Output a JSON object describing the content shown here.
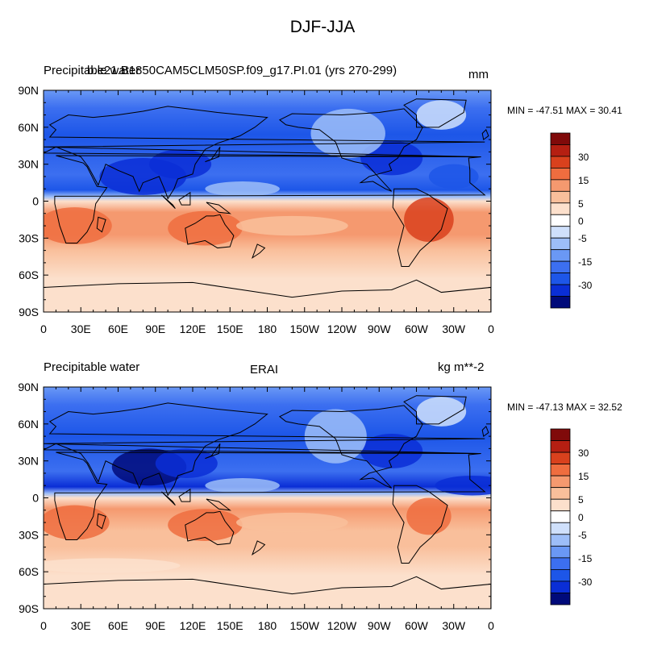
{
  "figure": {
    "title": "DJF-JJA"
  },
  "colors": {
    "ocean_base": "#f5d3b8",
    "land_outline": "#000000",
    "scale": [
      "#000a7a",
      "#0a2ed6",
      "#1d56e8",
      "#3c6ff0",
      "#6a98f5",
      "#9dbef8",
      "#cfe0fb",
      "#ffffff",
      "#fce0cc",
      "#f9bf9b",
      "#f5996f",
      "#ef6d3f",
      "#d9411d",
      "#b51f12",
      "#800a0a"
    ]
  },
  "panels": [
    {
      "id": "model",
      "left_title": "Precipitable water",
      "center_title": "b.e21.B1850CAM5CLM50SP.f09_g17.PI.01 (yrs 270-299)",
      "units": "mm",
      "min_max": "MIN = -47.51 MAX =  30.41",
      "colorbar_labels": [
        "30",
        "15",
        "5",
        "0",
        "-5",
        "-15",
        "-30"
      ]
    },
    {
      "id": "obs",
      "left_title": "Precipitable water",
      "center_title": "ERAI",
      "units": "kg m**-2",
      "min_max": "MIN = -47.13 MAX =  32.52",
      "colorbar_labels": [
        "30",
        "15",
        "5",
        "0",
        "-5",
        "-15",
        "-30"
      ]
    }
  ],
  "axes": {
    "lat_labels": [
      "90N",
      "60N",
      "30N",
      "0",
      "30S",
      "60S",
      "90S"
    ],
    "lon_labels": [
      "0",
      "30E",
      "60E",
      "90E",
      "120E",
      "150E",
      "180",
      "150W",
      "120W",
      "90W",
      "60W",
      "30W",
      "0"
    ]
  },
  "chart_data": [
    {
      "type": "heatmap",
      "title": "b.e21.B1850CAM5CLM50SP.f09_g17.PI.01 (yrs 270-299)",
      "variable": "Precipitable water",
      "units": "mm",
      "min": -47.51,
      "max": 30.41,
      "lat_range": [
        -90,
        90
      ],
      "lon_range": [
        0,
        360
      ],
      "contour_levels": [
        -40,
        -35,
        -30,
        -25,
        -20,
        -15,
        -10,
        -5,
        -2,
        0,
        2,
        5,
        10,
        15,
        20,
        25,
        30,
        35
      ],
      "zonal_bands": [
        {
          "lat": [
            60,
            90
          ],
          "value": -12
        },
        {
          "lat": [
            30,
            60
          ],
          "value": -22
        },
        {
          "lat": [
            0,
            30
          ],
          "value": -15
        },
        {
          "lat": [
            -30,
            0
          ],
          "value": 12
        },
        {
          "lat": [
            -60,
            -30
          ],
          "value": 7
        },
        {
          "lat": [
            -90,
            -60
          ],
          "value": 2
        }
      ]
    },
    {
      "type": "heatmap",
      "title": "ERAI",
      "variable": "Precipitable water",
      "units": "kg m**-2",
      "min": -47.13,
      "max": 32.52,
      "lat_range": [
        -90,
        90
      ],
      "lon_range": [
        0,
        360
      ],
      "contour_levels": [
        -40,
        -35,
        -30,
        -25,
        -20,
        -15,
        -10,
        -5,
        -2,
        0,
        2,
        5,
        10,
        15,
        20,
        25,
        30,
        35
      ],
      "zonal_bands": [
        {
          "lat": [
            60,
            90
          ],
          "value": -12
        },
        {
          "lat": [
            30,
            60
          ],
          "value": -22
        },
        {
          "lat": [
            0,
            30
          ],
          "value": -14
        },
        {
          "lat": [
            -30,
            0
          ],
          "value": 11
        },
        {
          "lat": [
            -60,
            -30
          ],
          "value": 6
        },
        {
          "lat": [
            -90,
            -60
          ],
          "value": 2
        }
      ]
    }
  ]
}
